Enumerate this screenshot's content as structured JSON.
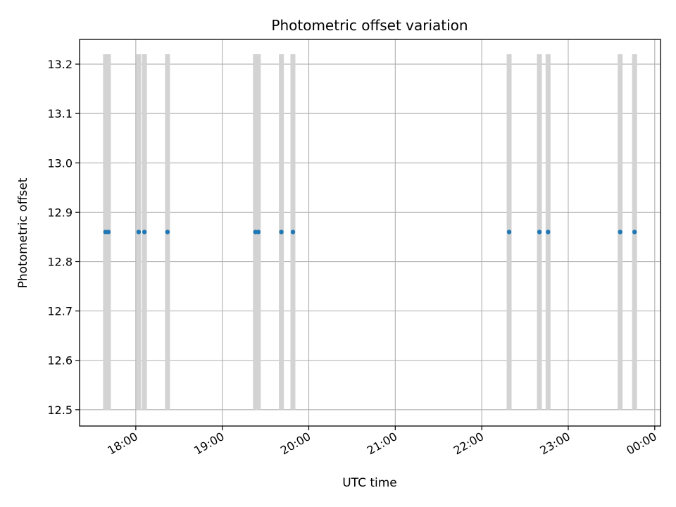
{
  "chart_data": {
    "type": "scatter",
    "title": "Photometric offset variation",
    "xlabel": "UTC time",
    "ylabel": "Photometric offset",
    "x_axis": "time",
    "xlim": [
      "17:21",
      "00:04"
    ],
    "ylim": [
      12.467,
      13.25
    ],
    "x_ticks": [
      "18:00",
      "19:00",
      "20:00",
      "21:00",
      "22:00",
      "23:00",
      "00:00"
    ],
    "y_ticks": [
      "12.5",
      "12.6",
      "12.7",
      "12.8",
      "12.9",
      "13.0",
      "13.1",
      "13.2"
    ],
    "grid": true,
    "marker_color": "#1f77b4",
    "band_color": "#d3d3d3",
    "band_range": [
      12.5,
      13.22
    ],
    "points": [
      {
        "x": "17:39",
        "y": 12.86
      },
      {
        "x": "17:41",
        "y": 12.86
      },
      {
        "x": "18:02",
        "y": 12.86
      },
      {
        "x": "18:06",
        "y": 12.86
      },
      {
        "x": "18:22",
        "y": 12.86
      },
      {
        "x": "19:23",
        "y": 12.86
      },
      {
        "x": "19:25",
        "y": 12.86
      },
      {
        "x": "19:41",
        "y": 12.86
      },
      {
        "x": "19:49",
        "y": 12.86
      },
      {
        "x": "22:19",
        "y": 12.86
      },
      {
        "x": "22:40",
        "y": 12.86
      },
      {
        "x": "22:46",
        "y": 12.86
      },
      {
        "x": "23:36",
        "y": 12.86
      },
      {
        "x": "23:46",
        "y": 12.86
      }
    ]
  }
}
